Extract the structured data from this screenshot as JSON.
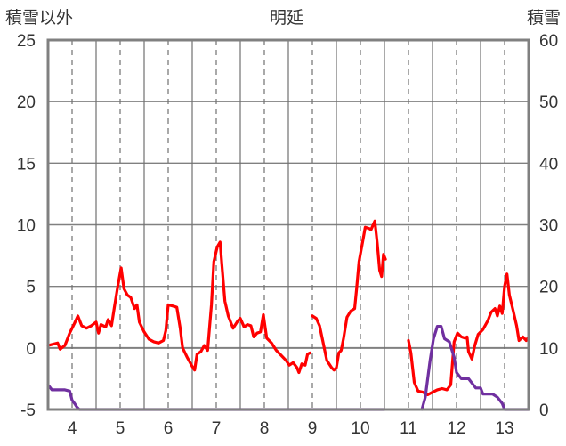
{
  "chart_data": {
    "type": "line",
    "title": "明延",
    "left_axis_label": "積雪以外",
    "right_axis_label": "積雪",
    "x_ticks": [
      "4",
      "5",
      "6",
      "7",
      "8",
      "9",
      "10",
      "11",
      "12",
      "13"
    ],
    "xlim": [
      3.5,
      13.5
    ],
    "ylim_left": [
      -5,
      25
    ],
    "ylim_right": [
      0,
      60
    ],
    "yticks_left": [
      -5,
      0,
      5,
      10,
      15,
      20,
      25
    ],
    "yticks_right": [
      0,
      10,
      20,
      30,
      40,
      50,
      60
    ],
    "colors": {
      "temperature": "#ff0000",
      "snow": "#7030a0",
      "frame": "#808080",
      "grid": "#707070"
    },
    "series": [
      {
        "key": "temperature",
        "axis": "left",
        "segments": [
          [
            [
              3.5,
              0.2
            ],
            [
              3.6,
              0.3
            ],
            [
              3.7,
              0.4
            ],
            [
              3.75,
              -0.1
            ],
            [
              3.85,
              0.2
            ],
            [
              3.95,
              1.2
            ],
            [
              4.05,
              2.0
            ],
            [
              4.12,
              2.6
            ],
            [
              4.2,
              1.8
            ],
            [
              4.3,
              1.6
            ],
            [
              4.4,
              1.8
            ],
            [
              4.5,
              2.1
            ],
            [
              4.55,
              1.2
            ],
            [
              4.6,
              1.9
            ],
            [
              4.7,
              1.7
            ],
            [
              4.75,
              2.3
            ],
            [
              4.82,
              1.8
            ],
            [
              4.88,
              3.3
            ],
            [
              4.95,
              5.0
            ],
            [
              5.02,
              6.5
            ],
            [
              5.08,
              4.8
            ],
            [
              5.15,
              4.3
            ],
            [
              5.22,
              4.1
            ],
            [
              5.3,
              3.2
            ],
            [
              5.35,
              3.5
            ],
            [
              5.4,
              2.1
            ],
            [
              5.5,
              1.3
            ],
            [
              5.6,
              0.7
            ],
            [
              5.7,
              0.5
            ],
            [
              5.8,
              0.4
            ],
            [
              5.9,
              0.6
            ],
            [
              5.95,
              1.4
            ],
            [
              6.0,
              3.5
            ],
            [
              6.1,
              3.4
            ],
            [
              6.18,
              3.3
            ],
            [
              6.25,
              1.6
            ],
            [
              6.3,
              0.0
            ],
            [
              6.4,
              -0.8
            ],
            [
              6.5,
              -1.5
            ],
            [
              6.55,
              -1.8
            ],
            [
              6.6,
              -0.5
            ],
            [
              6.68,
              -0.3
            ],
            [
              6.75,
              0.2
            ],
            [
              6.82,
              -0.2
            ],
            [
              6.9,
              3.5
            ],
            [
              6.95,
              7.0
            ],
            [
              7.02,
              8.2
            ],
            [
              7.08,
              8.6
            ],
            [
              7.12,
              6.6
            ],
            [
              7.18,
              3.8
            ],
            [
              7.25,
              2.6
            ],
            [
              7.35,
              1.6
            ],
            [
              7.45,
              2.2
            ],
            [
              7.5,
              2.4
            ],
            [
              7.58,
              1.7
            ],
            [
              7.65,
              1.9
            ],
            [
              7.72,
              1.8
            ],
            [
              7.78,
              0.9
            ],
            [
              7.85,
              1.2
            ],
            [
              7.92,
              1.3
            ],
            [
              7.98,
              2.7
            ],
            [
              8.05,
              0.8
            ],
            [
              8.15,
              0.4
            ],
            [
              8.25,
              -0.2
            ],
            [
              8.35,
              -0.6
            ],
            [
              8.45,
              -1.0
            ],
            [
              8.52,
              -1.4
            ],
            [
              8.6,
              -1.2
            ],
            [
              8.68,
              -1.6
            ],
            [
              8.72,
              -2.0
            ],
            [
              8.78,
              -1.3
            ],
            [
              8.85,
              -1.4
            ],
            [
              8.9,
              -0.5
            ],
            [
              8.95,
              -0.4
            ]
          ],
          [
            [
              9.0,
              2.6
            ],
            [
              9.08,
              2.4
            ],
            [
              9.15,
              1.8
            ],
            [
              9.22,
              0.5
            ],
            [
              9.3,
              -1.0
            ],
            [
              9.4,
              -1.6
            ],
            [
              9.45,
              -1.8
            ],
            [
              9.5,
              -1.6
            ],
            [
              9.55,
              -0.4
            ],
            [
              9.6,
              -0.2
            ],
            [
              9.65,
              0.8
            ],
            [
              9.72,
              2.5
            ],
            [
              9.8,
              3.0
            ],
            [
              9.88,
              3.2
            ],
            [
              9.92,
              4.8
            ],
            [
              9.97,
              7.0
            ],
            [
              10.05,
              8.7
            ],
            [
              10.1,
              9.8
            ],
            [
              10.18,
              9.7
            ],
            [
              10.22,
              9.6
            ],
            [
              10.3,
              10.3
            ],
            [
              10.35,
              8.5
            ],
            [
              10.4,
              6.3
            ],
            [
              10.44,
              5.8
            ],
            [
              10.48,
              7.6
            ],
            [
              10.52,
              7.2
            ]
          ],
          [
            [
              11.0,
              0.6
            ],
            [
              11.05,
              -0.4
            ],
            [
              11.12,
              -2.8
            ],
            [
              11.2,
              -3.5
            ],
            [
              11.3,
              -3.6
            ],
            [
              11.4,
              -3.8
            ],
            [
              11.5,
              -3.6
            ],
            [
              11.6,
              -3.4
            ],
            [
              11.7,
              -3.3
            ],
            [
              11.8,
              -3.4
            ],
            [
              11.88,
              -3.0
            ],
            [
              11.95,
              0.5
            ],
            [
              12.02,
              1.2
            ],
            [
              12.1,
              0.9
            ],
            [
              12.18,
              0.8
            ],
            [
              12.22,
              0.9
            ],
            [
              12.25,
              -0.3
            ],
            [
              12.32,
              -0.9
            ],
            [
              12.38,
              0.2
            ],
            [
              12.45,
              1.1
            ],
            [
              12.55,
              1.5
            ],
            [
              12.65,
              2.2
            ],
            [
              12.72,
              2.9
            ],
            [
              12.8,
              3.2
            ],
            [
              12.85,
              2.6
            ],
            [
              12.9,
              3.4
            ],
            [
              12.95,
              2.8
            ],
            [
              13.0,
              5.0
            ],
            [
              13.05,
              6.0
            ],
            [
              13.1,
              4.3
            ],
            [
              13.18,
              3.0
            ],
            [
              13.25,
              1.8
            ],
            [
              13.3,
              0.6
            ],
            [
              13.38,
              0.9
            ],
            [
              13.45,
              0.6
            ],
            [
              13.5,
              0.9
            ]
          ]
        ]
      },
      {
        "key": "snow",
        "axis": "right",
        "segments": [
          [
            [
              3.5,
              4.0
            ],
            [
              3.58,
              3.2
            ],
            [
              3.7,
              3.2
            ],
            [
              3.85,
              3.2
            ],
            [
              3.95,
              3.0
            ],
            [
              4.0,
              1.5
            ],
            [
              4.05,
              1.0
            ],
            [
              4.1,
              0.4
            ],
            [
              4.15,
              0.0
            ],
            [
              10.5,
              0.0
            ]
          ],
          [
            [
              11.28,
              0.0
            ],
            [
              11.35,
              2.0
            ],
            [
              11.45,
              8.0
            ],
            [
              11.52,
              11.5
            ],
            [
              11.6,
              13.5
            ],
            [
              11.68,
              13.5
            ],
            [
              11.75,
              11.5
            ],
            [
              11.85,
              11.0
            ],
            [
              11.95,
              8.5
            ],
            [
              12.0,
              6.0
            ],
            [
              12.1,
              5.0
            ],
            [
              12.25,
              5.0
            ],
            [
              12.4,
              3.5
            ],
            [
              12.5,
              3.5
            ],
            [
              12.55,
              2.5
            ],
            [
              12.75,
              2.5
            ],
            [
              12.85,
              2.0
            ],
            [
              12.95,
              1.0
            ],
            [
              13.0,
              0.0
            ],
            [
              13.5,
              0.0
            ]
          ]
        ]
      }
    ]
  }
}
